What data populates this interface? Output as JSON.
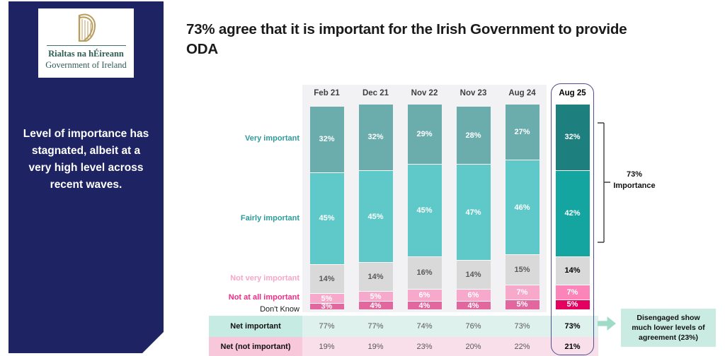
{
  "header": {
    "title": "73% agree that it is important for the Irish Government to provide ODA"
  },
  "sidebar": {
    "logo": {
      "irish": "Rialtas na hÉireann",
      "english": "Government of Ireland"
    },
    "message": "Level of importance has stagnated, albeit at a very high level across recent waves."
  },
  "chart_data": {
    "type": "bar",
    "stacked": true,
    "title": "73% agree that it is important for the Irish Government to provide ODA",
    "unit": "%",
    "value_suffix": "%",
    "categories": [
      "Feb 21",
      "Dec 21",
      "Nov 22",
      "Nov 23",
      "Aug 24",
      "Aug 25"
    ],
    "highlight_category": "Aug 25",
    "highlight_index": 5,
    "ylim": [
      0,
      100
    ],
    "legend_position": "left-row-labels",
    "grid": false,
    "series": [
      {
        "name": "Very important",
        "values": [
          32,
          32,
          29,
          28,
          27,
          32
        ],
        "color": "#6badad",
        "highlight_color": "#1e7f7f",
        "text_color": "#ffffff",
        "highlight_text_color": "#ffffff",
        "row_label_color": "#2d9b9b"
      },
      {
        "name": "Fairly important",
        "values": [
          45,
          45,
          45,
          47,
          46,
          42
        ],
        "color": "#5fc8c8",
        "highlight_color": "#14a5a0",
        "text_color": "#ffffff",
        "highlight_text_color": "#ffffff",
        "row_label_color": "#2d9b9b"
      },
      {
        "name": "Not very important",
        "values": [
          14,
          14,
          16,
          14,
          15,
          14
        ],
        "color": "#d9d9d9",
        "highlight_color": "#d9d9d9",
        "text_color": "#595959",
        "highlight_text_color": "#000000",
        "row_label_color": "#f7a6c8"
      },
      {
        "name": "Not at all important",
        "values": [
          5,
          5,
          6,
          6,
          7,
          7
        ],
        "color": "#f7a9cb",
        "highlight_color": "#fb85b8",
        "text_color": "#ffffff",
        "highlight_text_color": "#ffffff",
        "row_label_color": "#ee2d83"
      },
      {
        "name": "Don't Know",
        "values": [
          3,
          4,
          4,
          4,
          5,
          5
        ],
        "color": "#e2679e",
        "highlight_color": "#e4005f",
        "text_color": "#ffffff",
        "highlight_text_color": "#ffffff",
        "row_label_color": "#1a1a1a"
      }
    ],
    "net_rows": [
      {
        "label": "Net important",
        "values": [
          "77%",
          "77%",
          "74%",
          "76%",
          "73%",
          "73%"
        ],
        "label_bg": "#c6ebe2",
        "values_bg": "#def1ec"
      },
      {
        "label": "Net (not important)",
        "values": [
          "19%",
          "19%",
          "23%",
          "20%",
          "22%",
          "21%"
        ],
        "label_bg": "#f9c7da",
        "values_bg": "#f8dfe9"
      }
    ]
  },
  "annotations": {
    "bracket_line1": "73%",
    "bracket_line2": "Importance",
    "callout": "Disengaged show much lower levels of agreement (23%)"
  }
}
